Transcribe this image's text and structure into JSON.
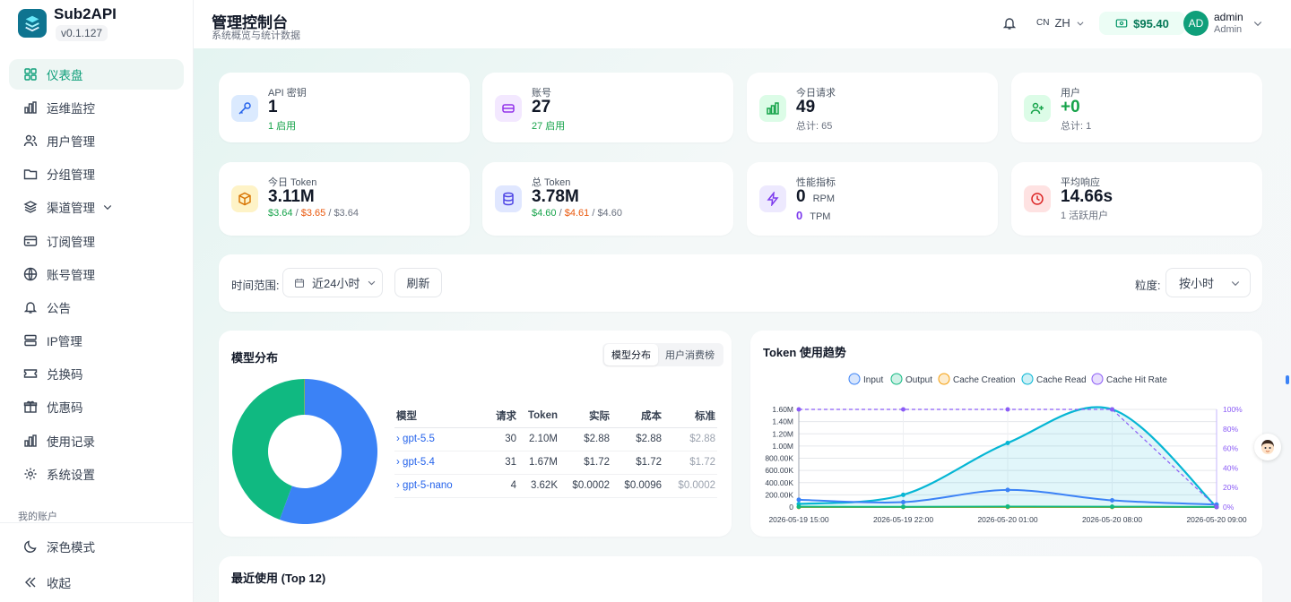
{
  "app": {
    "name": "Sub2API",
    "version": "v0.1.127"
  },
  "sidebar": {
    "items": [
      {
        "label": "仪表盘"
      },
      {
        "label": "运维监控"
      },
      {
        "label": "用户管理"
      },
      {
        "label": "分组管理"
      },
      {
        "label": "渠道管理"
      },
      {
        "label": "订阅管理"
      },
      {
        "label": "账号管理"
      },
      {
        "label": "公告"
      },
      {
        "label": "IP管理"
      },
      {
        "label": "兑换码"
      },
      {
        "label": "优惠码"
      },
      {
        "label": "使用记录"
      },
      {
        "label": "系统设置"
      }
    ],
    "section_label": "我的账户",
    "dark_mode": "深色模式",
    "collapse": "收起"
  },
  "header": {
    "title": "管理控制台",
    "subtitle": "系统概览与统计数据",
    "lang_flag": "CN",
    "lang": "ZH",
    "balance": "$95.40",
    "user_initials": "AD",
    "user_name": "admin",
    "user_role": "Admin"
  },
  "stats": {
    "api_keys": {
      "label": "API 密钥",
      "value": "1",
      "sub": "1 启用"
    },
    "accounts": {
      "label": "账号",
      "value": "27",
      "sub": "27 启用"
    },
    "today_requests": {
      "label": "今日请求",
      "value": "49",
      "sub": "总计: 65"
    },
    "users": {
      "label": "用户",
      "value": "+0",
      "sub": "总计: 1"
    },
    "today_token": {
      "label": "今日 Token",
      "value": "3.11M",
      "actual": "$3.64",
      "cost": "$3.65",
      "standard": "$3.64"
    },
    "total_token": {
      "label": "总 Token",
      "value": "3.78M",
      "actual": "$4.60",
      "cost": "$4.61",
      "standard": "$4.60"
    },
    "performance": {
      "label": "性能指标",
      "rpm": "0",
      "rpm_unit": "RPM",
      "tpm": "0",
      "tpm_unit": "TPM"
    },
    "avg_response": {
      "label": "平均响应",
      "value": "14.66s",
      "sub": "1 活跃用户"
    }
  },
  "filters": {
    "range_label": "时间范围:",
    "range_value": "近24小时",
    "refresh": "刷新",
    "granularity_label": "粒度:",
    "granularity_value": "按小时",
    "separator": "/"
  },
  "model_dist": {
    "title": "模型分布",
    "tabs": [
      "模型分布",
      "用户消费榜"
    ],
    "columns": [
      "模型",
      "请求",
      "Token",
      "实际",
      "成本",
      "标准"
    ],
    "rows": [
      {
        "model": "gpt-5.5",
        "requests": "30",
        "token": "2.10M",
        "actual": "$2.88",
        "cost": "$2.88",
        "standard": "$2.88"
      },
      {
        "model": "gpt-5.4",
        "requests": "31",
        "token": "1.67M",
        "actual": "$1.72",
        "cost": "$1.72",
        "standard": "$1.72"
      },
      {
        "model": "gpt-5-nano",
        "requests": "4",
        "token": "3.62K",
        "actual": "$0.0002",
        "cost": "$0.0096",
        "standard": "$0.0002"
      }
    ],
    "donut": [
      {
        "value": 2.1,
        "color": "#3b82f6"
      },
      {
        "value": 1.67,
        "color": "#10b981"
      },
      {
        "value": 0.00362,
        "color": "#f59e0b"
      }
    ]
  },
  "token_trend": {
    "title": "Token 使用趋势",
    "legend": [
      {
        "name": "Input",
        "color": "#3b82f6"
      },
      {
        "name": "Output",
        "color": "#10b981"
      },
      {
        "name": "Cache Creation",
        "color": "#f59e0b"
      },
      {
        "name": "Cache Read",
        "color": "#06b6d4"
      },
      {
        "name": "Cache Hit Rate",
        "color": "#8b5cf6"
      }
    ],
    "y_ticks": [
      "1.60M",
      "1.40M",
      "1.20M",
      "1.00M",
      "800.00K",
      "600.00K",
      "400.00K",
      "200.00K",
      "0"
    ],
    "y2_ticks": [
      "100%",
      "80%",
      "60%",
      "40%",
      "20%",
      "0%"
    ],
    "x_ticks": [
      "2026-05-19 15:00",
      "2026-05-19 22:00",
      "2026-05-20 01:00",
      "2026-05-20 08:00",
      "2026-05-20 09:00"
    ]
  },
  "recent": {
    "title": "最近使用 (Top 12)"
  },
  "chart_data": {
    "type": "line",
    "title": "Token 使用趋势",
    "x": [
      "2026-05-19 15:00",
      "2026-05-19 22:00",
      "2026-05-20 01:00",
      "2026-05-20 08:00",
      "2026-05-20 09:00"
    ],
    "ylim": [
      0,
      1600000
    ],
    "y2lim": [
      0,
      100
    ],
    "series": [
      {
        "name": "Input",
        "values": [
          120000,
          80000,
          280000,
          110000,
          40000
        ]
      },
      {
        "name": "Output",
        "values": [
          5000,
          4000,
          8000,
          6000,
          2000
        ]
      },
      {
        "name": "Cache Creation",
        "values": [
          0,
          0,
          0,
          0,
          0
        ]
      },
      {
        "name": "Cache Read",
        "values": [
          50000,
          200000,
          1050000,
          1600000,
          0
        ]
      },
      {
        "name": "Cache Hit Rate",
        "axis": "right",
        "values": [
          100,
          100,
          100,
          100,
          0
        ]
      }
    ],
    "grid": true,
    "legend": "top"
  }
}
